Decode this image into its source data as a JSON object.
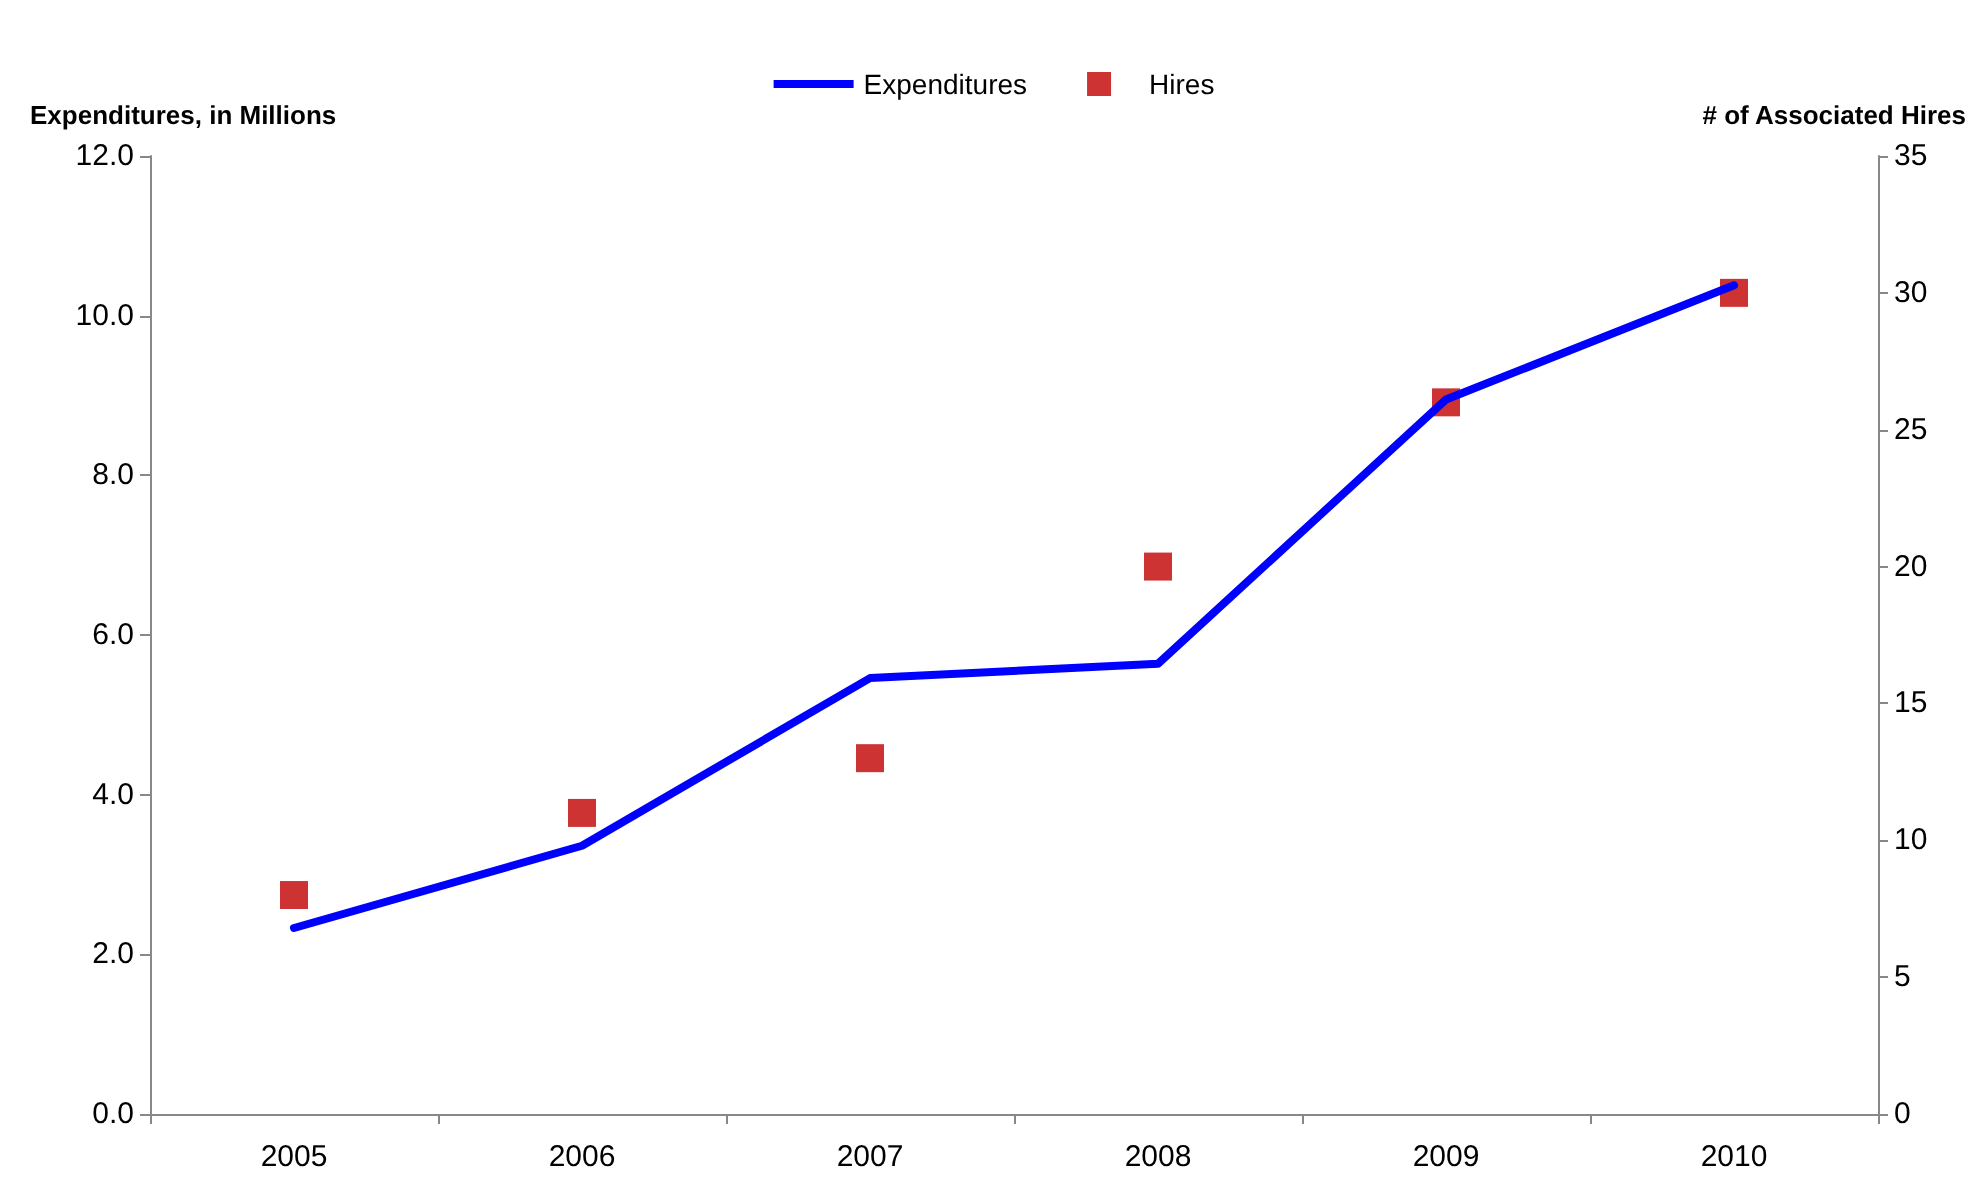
{
  "chart_data": {
    "type": "line",
    "ylabel": "Expenditures, in Millions",
    "y2label": "# of Associated Hires",
    "categories": [
      "2005",
      "2006",
      "2007",
      "2008",
      "2009",
      "2010"
    ],
    "series": [
      {
        "name": "Expenditures",
        "color": "#0000ff",
        "marker": "none",
        "values": [
          2.33,
          3.36,
          5.46,
          5.64,
          8.95,
          10.38
        ]
      },
      {
        "name": "Hires",
        "type": "scatter",
        "axis": "y2",
        "color": "#c00000",
        "marker": "square",
        "values": [
          8,
          11,
          13,
          20,
          26,
          30
        ]
      }
    ],
    "ylim": [
      0,
      12
    ],
    "yticks": [
      {
        "value": 0,
        "label": "0.0"
      },
      {
        "value": 2,
        "label": "2.0"
      },
      {
        "value": 4,
        "label": "4.0"
      },
      {
        "value": 6,
        "label": "6.0"
      },
      {
        "value": 8,
        "label": "8.0"
      },
      {
        "value": 10,
        "label": "10.0"
      },
      {
        "value": 12,
        "label": "12.0"
      }
    ],
    "y2lim": [
      0,
      35
    ],
    "y2ticks": [
      0,
      5,
      10,
      15,
      20,
      25,
      30,
      35
    ],
    "grid": false,
    "legend": "top"
  }
}
